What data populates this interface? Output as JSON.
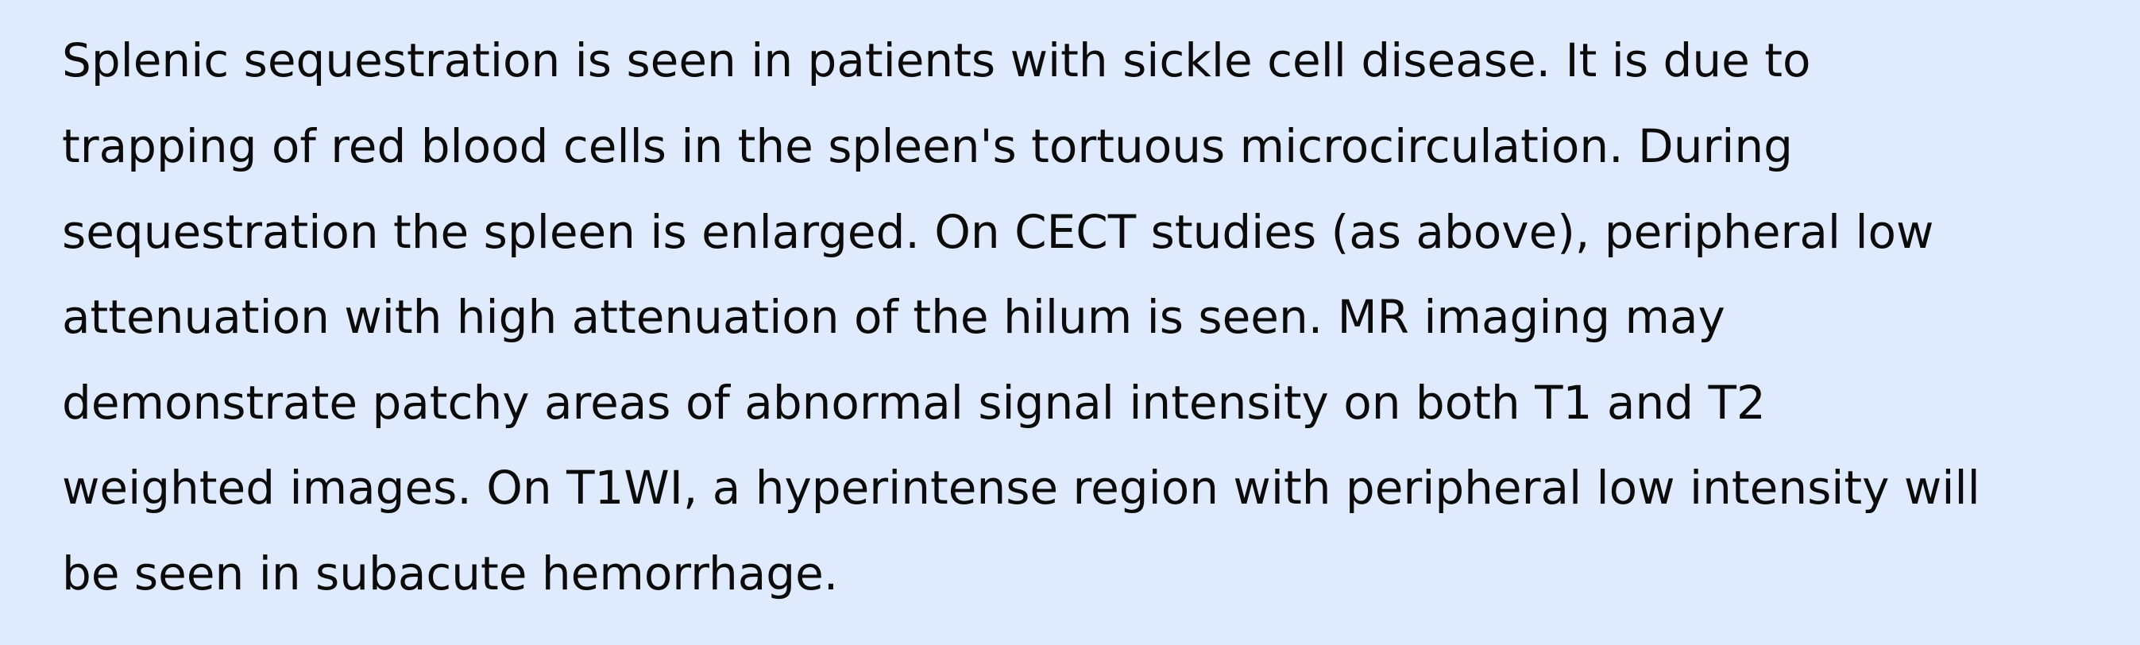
{
  "passage": {
    "lines": [
      "Splenic sequestration is seen in patients with sickle cell disease. It is due to",
      "trapping of red blood cells in the spleen's tortuous microcirculation. During",
      "sequestration the spleen is enlarged. On CECT studies (as above), peripheral low",
      "attenuation with high attenuation of the hilum is seen. MR imaging may",
      "demonstrate patchy areas of abnormal signal intensity on both T1 and T2",
      "weighted images. On T1WI, a hyperintense region with peripheral low intensity will",
      "be seen in subacute hemorrhage."
    ]
  },
  "colors": {
    "background": "#dfeafd",
    "text": "#0b0b0b"
  }
}
